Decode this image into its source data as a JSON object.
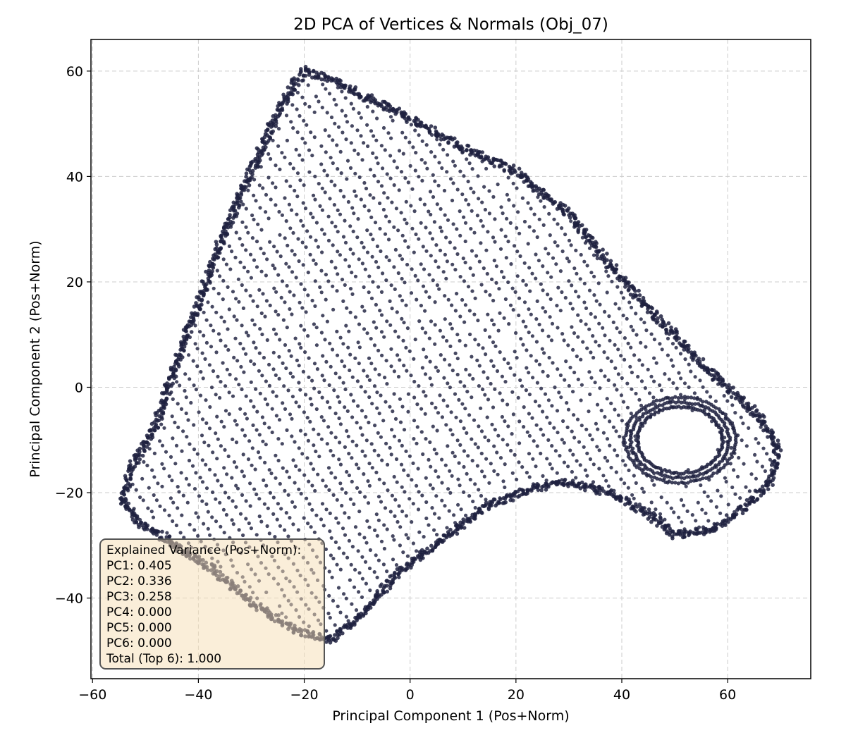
{
  "chart_data": {
    "type": "scatter",
    "title": "2D PCA of Vertices & Normals (Obj_07)",
    "xlabel": "Principal Component 1 (Pos+Norm)",
    "ylabel": "Principal Component 2 (Pos+Norm)",
    "xlim": [
      -60.3,
      75.7
    ],
    "ylim": [
      -55.3,
      66.0
    ],
    "xticks": [
      -60,
      -40,
      -20,
      0,
      20,
      40,
      60
    ],
    "yticks": [
      -40,
      -20,
      0,
      20,
      40,
      60
    ],
    "xtick_labels": [
      "−60",
      "−40",
      "−20",
      "0",
      "20",
      "40",
      "60"
    ],
    "ytick_labels": [
      "−40",
      "−20",
      "0",
      "20",
      "40",
      "60"
    ],
    "grid": true,
    "point_color": "#1e2140",
    "outline_vertices": [
      [
        -20.0,
        60.2
      ],
      [
        -12.0,
        57.0
      ],
      [
        0.0,
        51.0
      ],
      [
        10.0,
        45.5
      ],
      [
        20.0,
        41.0
      ],
      [
        30.0,
        33.0
      ],
      [
        38.0,
        23.0
      ],
      [
        44.0,
        16.0
      ],
      [
        50.0,
        10.0
      ],
      [
        56.0,
        3.5
      ],
      [
        62.0,
        -2.0
      ],
      [
        67.0,
        -6.5
      ],
      [
        69.5,
        -12.0
      ],
      [
        68.0,
        -18.0
      ],
      [
        63.0,
        -23.0
      ],
      [
        57.0,
        -27.0
      ],
      [
        50.0,
        -28.0
      ],
      [
        45.0,
        -24.0
      ],
      [
        38.0,
        -20.0
      ],
      [
        30.0,
        -18.0
      ],
      [
        22.0,
        -19.5
      ],
      [
        14.0,
        -23.0
      ],
      [
        6.0,
        -29.0
      ],
      [
        -2.0,
        -35.0
      ],
      [
        -9.0,
        -43.0
      ],
      [
        -15.0,
        -48.0
      ],
      [
        -22.0,
        -46.0
      ],
      [
        -30.0,
        -41.0
      ],
      [
        -38.0,
        -34.0
      ],
      [
        -46.0,
        -29.0
      ],
      [
        -52.0,
        -25.0
      ],
      [
        -54.5,
        -21.5
      ],
      [
        -53.0,
        -16.0
      ],
      [
        -48.0,
        -7.0
      ],
      [
        -44.0,
        5.0
      ],
      [
        -40.0,
        16.0
      ],
      [
        -36.0,
        27.0
      ],
      [
        -31.0,
        39.0
      ],
      [
        -26.0,
        50.0
      ],
      [
        -22.0,
        57.5
      ]
    ],
    "hole_center": [
      51.0,
      -10.0
    ],
    "hole_radii": [
      7.5,
      5.8
    ],
    "explained_variance_label": "Explained Variance (Pos+Norm):",
    "explained_variance": [
      {
        "label": "PC1",
        "value": "0.405"
      },
      {
        "label": "PC2",
        "value": "0.336"
      },
      {
        "label": "PC3",
        "value": "0.258"
      },
      {
        "label": "PC4",
        "value": "0.000"
      },
      {
        "label": "PC5",
        "value": "0.000"
      },
      {
        "label": "PC6",
        "value": "0.000"
      }
    ],
    "total_label": "Total (Top 6)",
    "total_value": "1.000"
  },
  "annotation": {
    "header": "Explained Variance (Pos+Norm):",
    "lines": [
      "PC1: 0.405",
      "PC2: 0.336",
      "PC3: 0.258",
      "PC4: 0.000",
      "PC5: 0.000",
      "PC6: 0.000",
      "Total (Top 6): 1.000"
    ]
  }
}
